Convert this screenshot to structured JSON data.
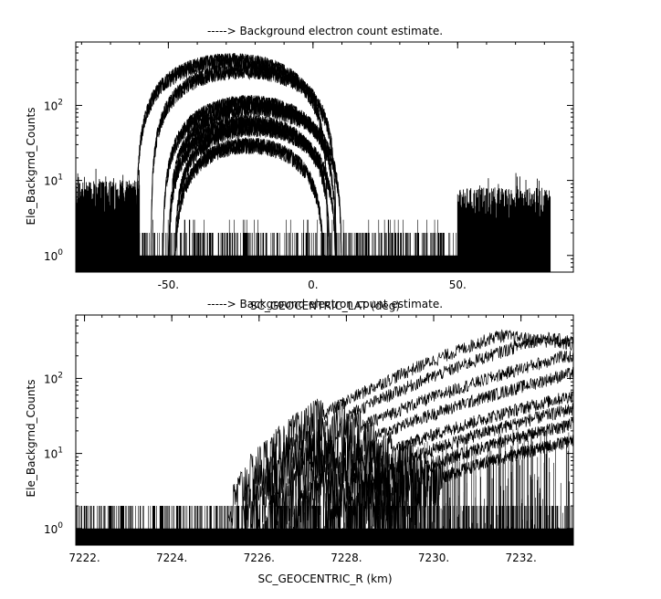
{
  "chart_data": [
    {
      "type": "line",
      "title": "-----> Background electron count estimate.",
      "xlabel": "SC_GEOCENTRIC_LAT (deg)",
      "ylabel": "Ele_Backgrnd_Counts",
      "xlim": [
        -82,
        90
      ],
      "ylim": [
        0.6,
        700
      ],
      "yscale": "log",
      "xticks": [
        -50,
        0,
        50
      ],
      "xtick_labels": [
        "-50.",
        "0.",
        "50."
      ],
      "yticks": [
        1,
        10,
        100
      ],
      "ytick_labels": [
        "10^0",
        "10^1",
        "10^2"
      ],
      "data_xrange": [
        -82,
        82
      ],
      "noise_floor": {
        "levels": [
          0,
          1,
          2,
          3
        ],
        "baseline": 1
      },
      "left_band": {
        "x": [
          -82,
          -60
        ],
        "typical": 10,
        "max": 15
      },
      "right_band": {
        "x": [
          50,
          82
        ],
        "typical": 8,
        "max": 14
      },
      "series": [
        {
          "center": -28,
          "peak": 400,
          "half_width": 33
        },
        {
          "center": -24,
          "peak": 300,
          "half_width": 32
        },
        {
          "center": -22,
          "peak": 110,
          "half_width": 30
        },
        {
          "center": -20,
          "peak": 90,
          "half_width": 30
        },
        {
          "center": -22,
          "peak": 60,
          "half_width": 28
        },
        {
          "center": -20,
          "peak": 50,
          "half_width": 28
        },
        {
          "center": -22,
          "peak": 30,
          "half_width": 26
        }
      ],
      "grid": false
    },
    {
      "type": "line",
      "title": "-----> Background electron count estimate.",
      "xlabel": "SC_GEOCENTRIC_R (km)",
      "ylabel": "Ele_Backgrnd_Counts",
      "xlim": [
        7221.8,
        7233.2
      ],
      "ylim": [
        0.6,
        700
      ],
      "yscale": "log",
      "xticks": [
        7222,
        7224,
        7226,
        7228,
        7230,
        7232
      ],
      "xtick_labels": [
        "7222.",
        "7224.",
        "7226.",
        "7228.",
        "7230.",
        "7232."
      ],
      "yticks": [
        1,
        10,
        100
      ],
      "ytick_labels": [
        "10^0",
        "10^1",
        "10^2"
      ],
      "noise_floor": {
        "levels": [
          0,
          1,
          2
        ],
        "baseline": 1
      },
      "series": [
        {
          "onset": 7225.3,
          "x_peak": 7231.5,
          "peak": 380
        },
        {
          "onset": 7225.6,
          "x_peak": 7232.5,
          "peak": 350
        },
        {
          "onset": 7225.8,
          "x_peak": 7233.0,
          "peak": 200
        },
        {
          "onset": 7226.2,
          "x_peak": 7233.2,
          "peak": 120
        },
        {
          "onset": 7226.8,
          "x_peak": 7233.2,
          "peak": 60
        },
        {
          "onset": 7227.5,
          "x_peak": 7233.2,
          "peak": 40
        },
        {
          "onset": 7228.0,
          "x_peak": 7233.2,
          "peak": 25
        },
        {
          "onset": 7228.6,
          "x_peak": 7233.2,
          "peak": 15
        }
      ],
      "grid": false
    }
  ]
}
